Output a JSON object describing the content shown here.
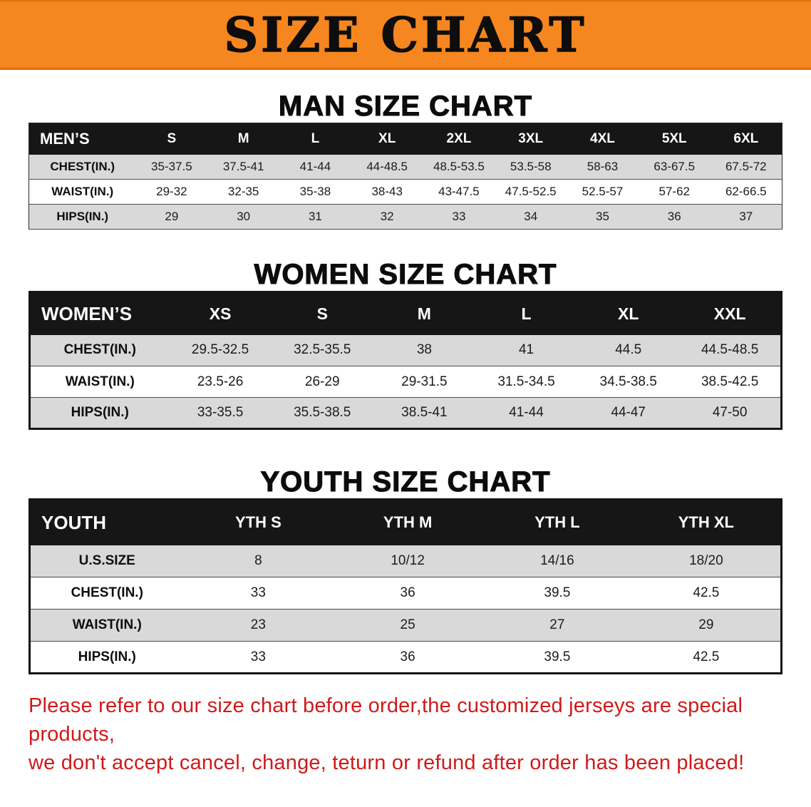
{
  "banner": {
    "title": "SIZE CHART"
  },
  "colors": {
    "banner_orange": "#f6861f",
    "header_black": "#161616",
    "row_gray": "#d9d9d9",
    "disclaimer_red": "#cf1a1a"
  },
  "sections": [
    {
      "heading": "MAN SIZE CHART",
      "table": {
        "header_label": "MEN’S",
        "columns": [
          "S",
          "M",
          "L",
          "XL",
          "2XL",
          "3XL",
          "4XL",
          "5XL",
          "6XL"
        ],
        "rows": [
          {
            "label": "CHEST(IN.)",
            "values": [
              "35-37.5",
              "37.5-41",
              "41-44",
              "44-48.5",
              "48.5-53.5",
              "53.5-58",
              "58-63",
              "63-67.5",
              "67.5-72"
            ]
          },
          {
            "label": "WAIST(IN.)",
            "values": [
              "29-32",
              "32-35",
              "35-38",
              "38-43",
              "43-47.5",
              "47.5-52.5",
              "52.5-57",
              "57-62",
              "62-66.5"
            ]
          },
          {
            "label": "HIPS(IN.)",
            "values": [
              "29",
              "30",
              "31",
              "32",
              "33",
              "34",
              "35",
              "36",
              "37"
            ]
          }
        ]
      }
    },
    {
      "heading": "WOMEN SIZE CHART",
      "table": {
        "header_label": "WOMEN’S",
        "columns": [
          "XS",
          "S",
          "M",
          "L",
          "XL",
          "XXL"
        ],
        "rows": [
          {
            "label": "CHEST(IN.)",
            "values": [
              "29.5-32.5",
              "32.5-35.5",
              "38",
              "41",
              "44.5",
              "44.5-48.5"
            ]
          },
          {
            "label": "WAIST(IN.)",
            "values": [
              "23.5-26",
              "26-29",
              "29-31.5",
              "31.5-34.5",
              "34.5-38.5",
              "38.5-42.5"
            ]
          },
          {
            "label": "HIPS(IN.)",
            "values": [
              "33-35.5",
              "35.5-38.5",
              "38.5-41",
              "41-44",
              "44-47",
              "47-50"
            ]
          }
        ]
      }
    },
    {
      "heading": "YOUTH SIZE CHART",
      "table": {
        "header_label": "YOUTH",
        "columns": [
          "YTH S",
          "YTH M",
          "YTH L",
          "YTH XL"
        ],
        "rows": [
          {
            "label": "U.S.SIZE",
            "values": [
              "8",
              "10/12",
              "14/16",
              "18/20"
            ]
          },
          {
            "label": "CHEST(IN.)",
            "values": [
              "33",
              "36",
              "39.5",
              "42.5"
            ]
          },
          {
            "label": "WAIST(IN.)",
            "values": [
              "23",
              "25",
              "27",
              "29"
            ]
          },
          {
            "label": "HIPS(IN.)",
            "values": [
              "33",
              "36",
              "39.5",
              "42.5"
            ]
          }
        ]
      }
    }
  ],
  "disclaimer": {
    "line1": "Please refer to our size chart before order,the customized jerseys are special products,",
    "line2": "we don't accept cancel, change, teturn or refund after order has been placed!"
  }
}
